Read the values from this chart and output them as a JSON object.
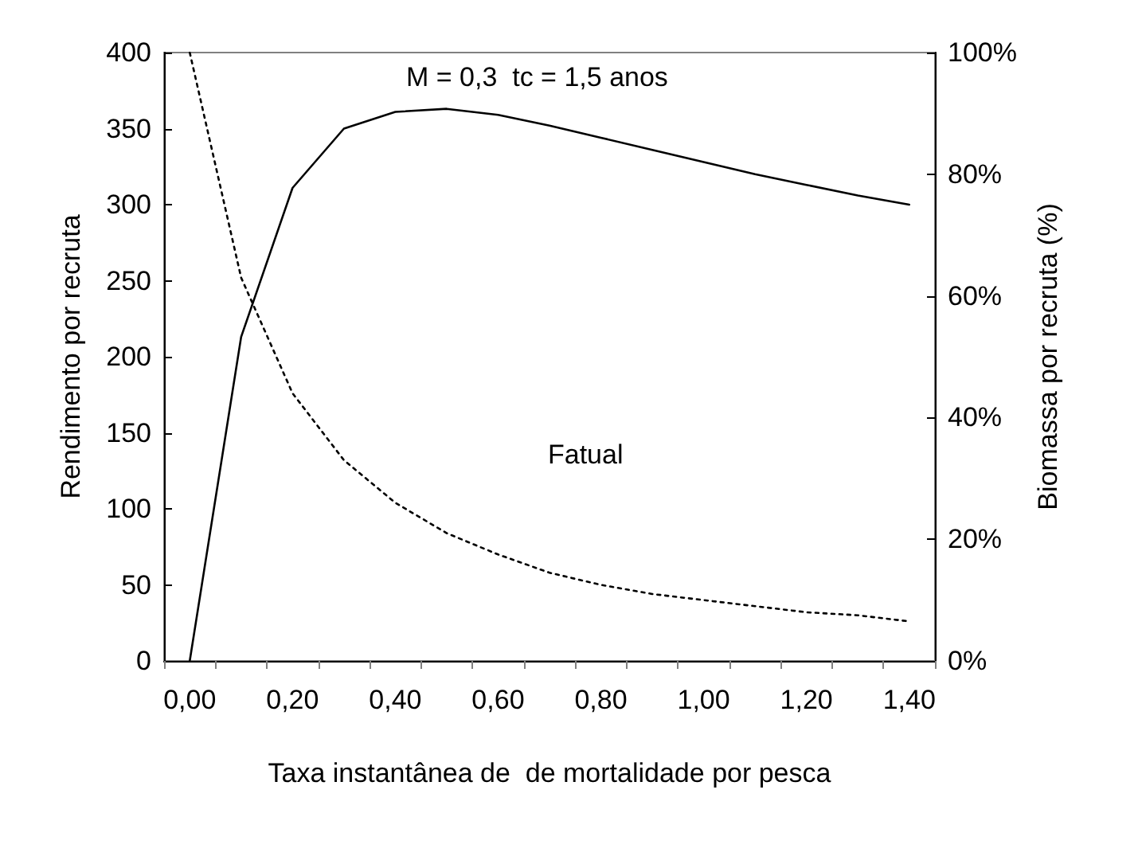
{
  "chart_data": {
    "type": "line",
    "xlabel": "Taxa instantânea de  de mortalidade por pesca",
    "ylabel": "Rendimento por recruta",
    "y2label": "Biomassa por recruta (%)",
    "annotations": [
      "M = 0,3  tc = 1,5 anos",
      "Fatual"
    ],
    "categories": [
      "0,00",
      null,
      "0,20",
      null,
      "0,40",
      null,
      "0,60",
      null,
      "0,80",
      null,
      "1,00",
      null,
      "1,20",
      null,
      "1,40"
    ],
    "series": [
      {
        "color": "#000000",
        "line_style": "solid",
        "values": [
          0,
          213,
          311,
          350,
          361,
          363,
          359,
          352,
          344,
          336,
          328,
          320,
          313,
          306,
          300
        ]
      },
      {
        "color": "#000000",
        "line_style": "dotted",
        "axis": "y2",
        "values": [
          100,
          63,
          44,
          33,
          26,
          21,
          17.5,
          14.5,
          12.5,
          11,
          10,
          9,
          8,
          7.5,
          6.5
        ]
      }
    ],
    "ylim": [
      0,
      400
    ],
    "yticks": [
      0,
      50,
      100,
      150,
      200,
      250,
      300,
      350,
      400
    ],
    "y2lim": [
      0,
      100
    ],
    "y2ticks": [
      {
        "value": 0,
        "label": "0%"
      },
      {
        "value": 20,
        "label": "20%"
      },
      {
        "value": 40,
        "label": "40%"
      },
      {
        "value": 60,
        "label": "60%"
      },
      {
        "value": 80,
        "label": "80%"
      },
      {
        "value": 100,
        "label": "100%"
      }
    ],
    "grid": false,
    "marker": "none"
  }
}
